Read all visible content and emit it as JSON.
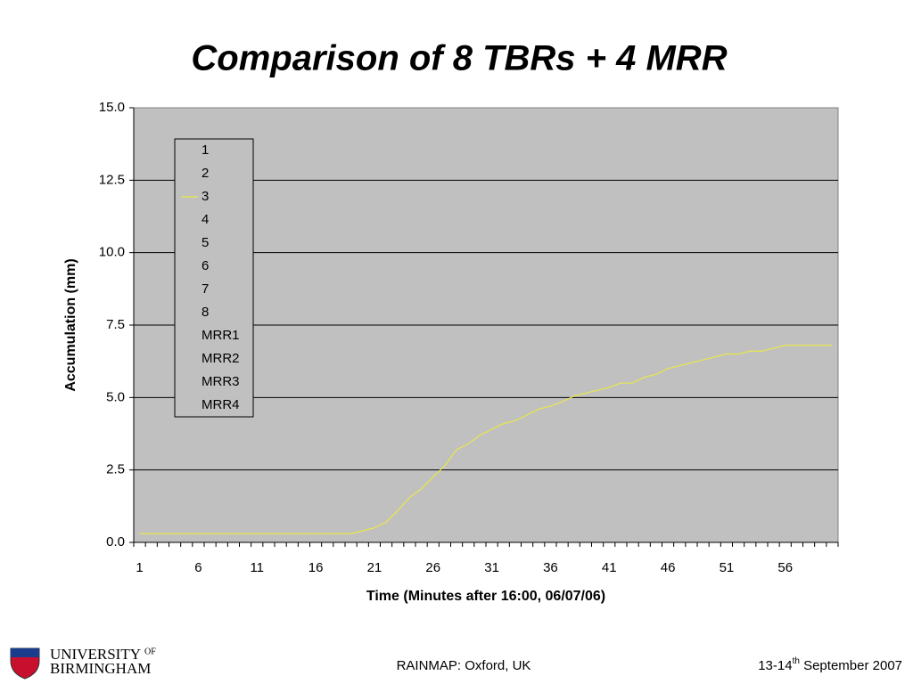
{
  "chart_data": {
    "type": "line",
    "title": "Comparison of 8 TBRs + 4 MRR",
    "ylabel": "Accumulation (mm)",
    "xlabel": "Time (Minutes after 16:00, 06/07/06)",
    "categories": [
      1,
      null,
      null,
      null,
      null,
      6,
      null,
      null,
      null,
      null,
      11,
      null,
      null,
      null,
      null,
      16,
      null,
      null,
      null,
      null,
      21,
      null,
      null,
      null,
      null,
      26,
      null,
      null,
      null,
      null,
      31,
      null,
      null,
      null,
      null,
      36,
      null,
      null,
      null,
      null,
      41,
      null,
      null,
      null,
      null,
      46,
      null,
      null,
      null,
      null,
      51,
      null,
      null,
      null,
      null,
      56,
      null,
      null,
      null,
      null
    ],
    "ylim": [
      0,
      15
    ],
    "yticks": [
      {
        "value": 0,
        "label": "0.0"
      },
      2.5,
      {
        "value": 5,
        "label": "5.0"
      },
      7.5,
      {
        "value": 10,
        "label": "10.0"
      },
      12.5,
      {
        "value": 15,
        "label": "15.0"
      }
    ],
    "grid": true,
    "series": [
      {
        "name": "1"
      },
      {
        "name": "2"
      },
      {
        "name": "3",
        "color": "#e8e84a",
        "values": [
          0.3,
          0.3,
          0.3,
          0.3,
          0.3,
          0.3,
          0.3,
          0.3,
          0.3,
          0.3,
          0.3,
          0.3,
          0.3,
          0.3,
          0.3,
          0.3,
          0.3,
          0.3,
          0.3,
          0.4,
          0.5,
          0.7,
          1.1,
          1.55,
          1.85,
          2.25,
          2.65,
          3.2,
          3.4,
          3.7,
          3.9,
          4.1,
          4.2,
          4.4,
          4.6,
          4.7,
          4.85,
          5.05,
          5.15,
          5.25,
          5.35,
          5.5,
          5.5,
          5.7,
          5.8,
          6.0,
          6.1,
          6.2,
          6.3,
          6.4,
          6.5,
          6.5,
          6.6,
          6.6,
          6.7,
          6.8,
          6.8,
          6.8,
          6.8,
          6.8
        ]
      },
      {
        "name": "4"
      },
      {
        "name": "5"
      },
      {
        "name": "6"
      },
      {
        "name": "7"
      },
      {
        "name": "8"
      },
      {
        "name": "MRR1"
      },
      {
        "name": "MRR2"
      },
      {
        "name": "MRR3"
      },
      {
        "name": "MRR4"
      }
    ]
  },
  "footer": {
    "university": "UNIVERSITY",
    "of": "OF",
    "birmingham": "BIRMINGHAM",
    "center": "RAINMAP: Oxford, UK",
    "date_start": "13-14",
    "date_sup": "th",
    "date_end": " September 2007"
  }
}
